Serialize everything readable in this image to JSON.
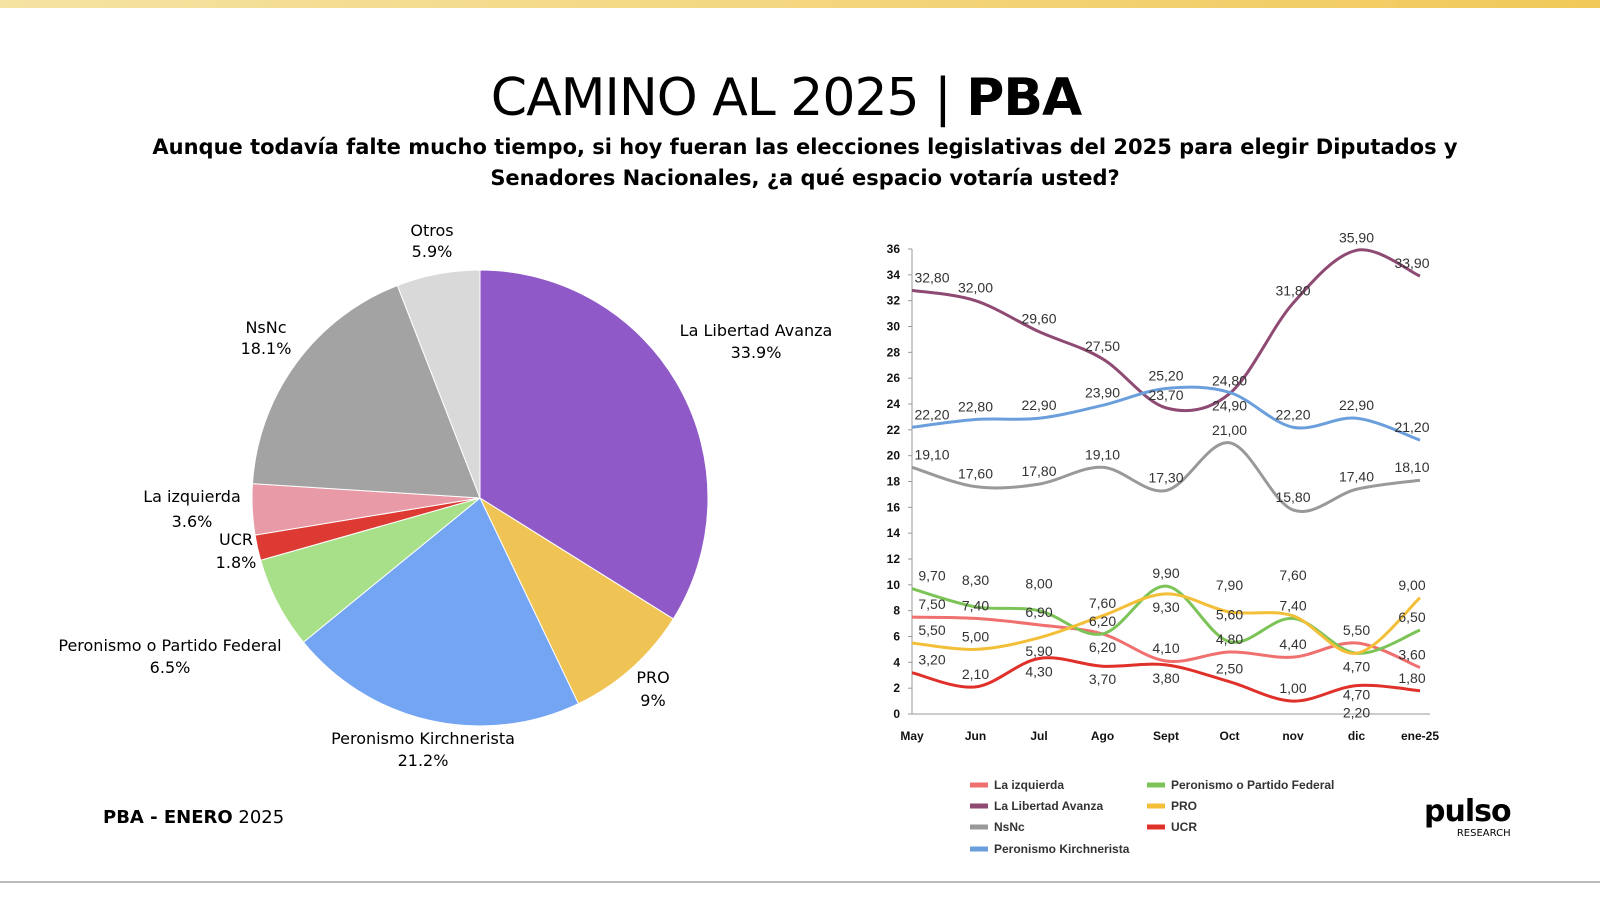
{
  "title_light": "CAMINO AL 2025 | ",
  "title_bold": "PBA",
  "subtitle": "Aunque todavía falte mucho tiempo, si hoy fueran las elecciones legislativas del 2025 para elegir Diputados y Senadores Nacionales, ¿a qué espacio votaría usted?",
  "footer_bold": "PBA -  ENERO",
  "footer_year": " 2025",
  "logo": {
    "name": "pulso",
    "sub": "RESEARCH"
  },
  "chart_data": [
    {
      "type": "pie",
      "slices": [
        {
          "label": "La Libertad Avanza",
          "value": 33.9,
          "text": "33.9%",
          "color": "#9059c8"
        },
        {
          "label": "PRO",
          "value": 9,
          "text": "9%",
          "color": "#f0c454"
        },
        {
          "label": "Peronismo Kirchnerista",
          "value": 21.2,
          "text": "21.2%",
          "color": "#74a5f2"
        },
        {
          "label": "Peronismo o Partido Federal",
          "value": 6.5,
          "text": "6.5%",
          "color": "#a8e08a"
        },
        {
          "label": "UCR",
          "value": 1.8,
          "text": "1.8%",
          "color": "#dd3a34"
        },
        {
          "label": "La izquierda",
          "value": 3.6,
          "text": "3.6%",
          "color": "#e89aa6"
        },
        {
          "label": "NsNc",
          "value": 18.1,
          "text": "18.1%",
          "color": "#a3a3a3"
        },
        {
          "label": "Otros",
          "value": 5.9,
          "text": "5.9%",
          "color": "#d9d9d9"
        }
      ]
    },
    {
      "type": "line",
      "categories": [
        "May",
        "Jun",
        "Jul",
        "Ago",
        "Sept",
        "Oct",
        "nov",
        "dic",
        "ene-25"
      ],
      "ylim": [
        0,
        36
      ],
      "yticks": [
        0,
        2,
        4,
        6,
        8,
        10,
        12,
        14,
        16,
        18,
        20,
        22,
        24,
        26,
        28,
        30,
        32,
        34,
        36
      ],
      "series": [
        {
          "name": "La izquierda",
          "color": "#f07070",
          "values": [
            7.5,
            7.4,
            6.9,
            6.2,
            4.1,
            4.8,
            4.4,
            5.5,
            3.6
          ]
        },
        {
          "name": "La Libertad Avanza",
          "color": "#8e4a72",
          "values": [
            32.8,
            32.0,
            29.6,
            27.5,
            23.7,
            24.8,
            31.8,
            35.9,
            33.9
          ]
        },
        {
          "name": "NsNc",
          "color": "#999999",
          "values": [
            19.1,
            17.6,
            17.8,
            19.1,
            17.3,
            21.0,
            15.8,
            17.4,
            18.1
          ]
        },
        {
          "name": "Peronismo Kirchnerista",
          "color": "#6a9fdc",
          "values": [
            22.2,
            22.8,
            22.9,
            23.9,
            25.2,
            24.9,
            22.2,
            22.9,
            21.2
          ]
        },
        {
          "name": "Peronismo o Partido Federal",
          "color": "#7cc458",
          "values": [
            9.7,
            8.3,
            8.0,
            6.2,
            9.9,
            5.6,
            7.4,
            4.7,
            6.5
          ]
        },
        {
          "name": "PRO",
          "color": "#f4bf38",
          "values": [
            5.5,
            5.0,
            5.9,
            7.6,
            9.3,
            7.9,
            7.6,
            4.7,
            9.0
          ]
        },
        {
          "name": "UCR",
          "color": "#e0302a",
          "values": [
            3.2,
            2.1,
            4.3,
            3.7,
            3.8,
            2.5,
            1.0,
            2.2,
            1.8
          ]
        }
      ]
    }
  ]
}
